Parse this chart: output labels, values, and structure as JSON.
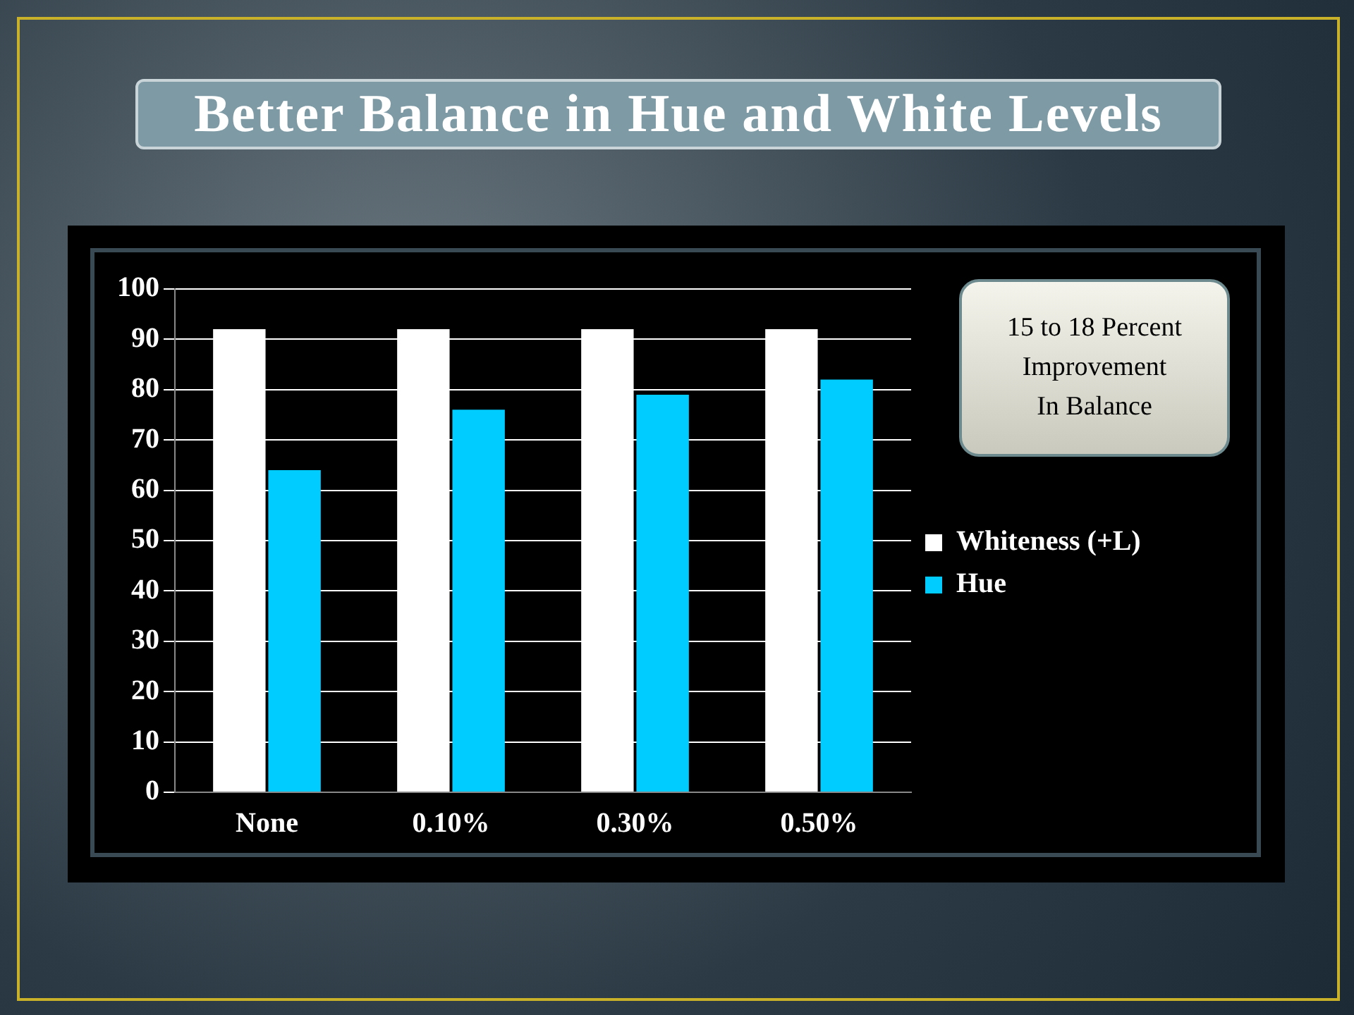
{
  "chart_data": {
    "type": "bar",
    "title": "Better Balance in Hue and White Levels",
    "categories": [
      "None",
      "0.10%",
      "0.30%",
      "0.50%"
    ],
    "series": [
      {
        "name": "Whiteness (+L)",
        "color": "#ffffff",
        "values": [
          92,
          92,
          92,
          92
        ]
      },
      {
        "name": "Hue",
        "color": "#00ccff",
        "values": [
          64,
          76,
          79,
          82
        ]
      }
    ],
    "ylim": [
      0,
      100
    ],
    "yticks": [
      0,
      10,
      20,
      30,
      40,
      50,
      60,
      70,
      80,
      90,
      100
    ],
    "grid": "y",
    "legend": "right",
    "annotations": [
      "15 to 18 Percent\nImprovement\nIn Balance"
    ]
  }
}
